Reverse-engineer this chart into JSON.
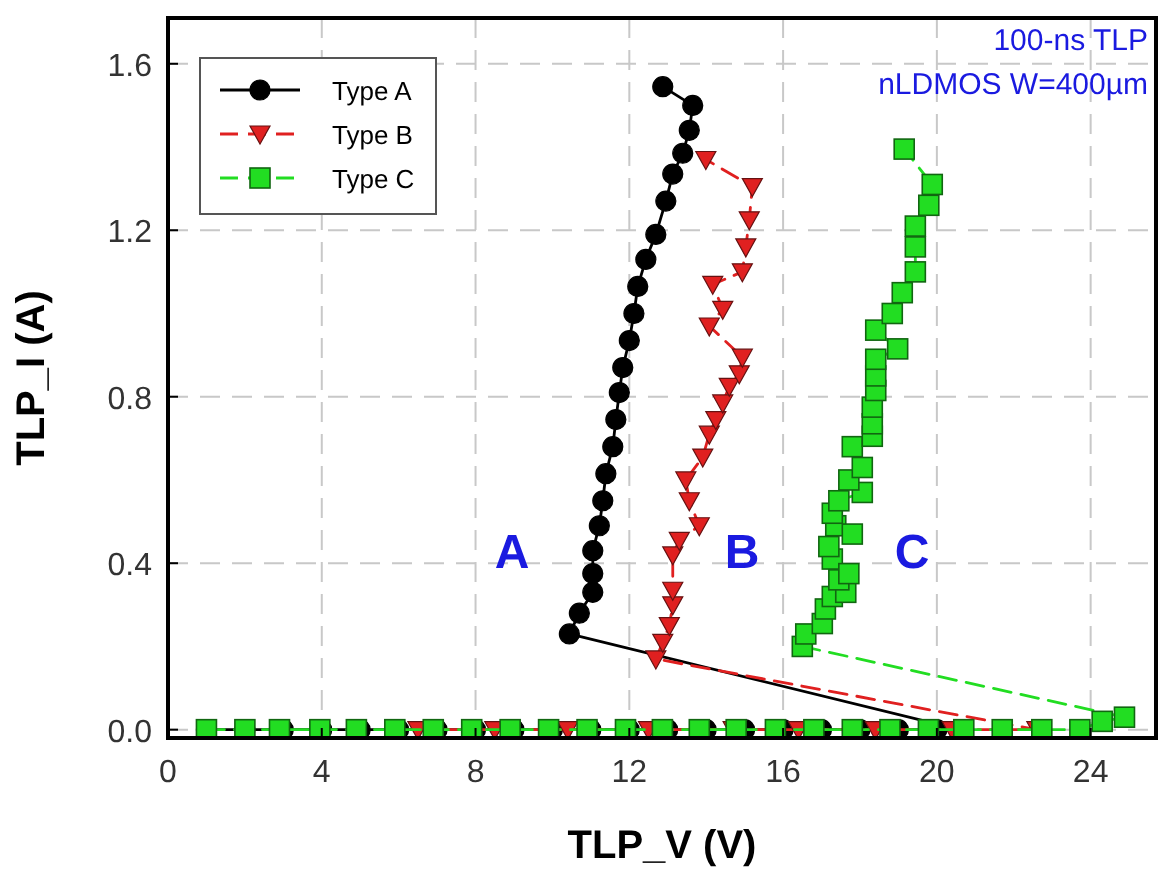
{
  "chart_data": {
    "type": "line",
    "xlabel": "TLP_V (V)",
    "ylabel": "TLP_I (A)",
    "xlim": [
      0,
      25.7
    ],
    "ylim": [
      -0.02,
      1.71
    ],
    "xticks": [
      0,
      4,
      8,
      12,
      16,
      20,
      24
    ],
    "yticks": [
      {
        "value": 0,
        "label": "0.0"
      },
      {
        "value": 0.4,
        "label": "0.4"
      },
      {
        "value": 0.8,
        "label": "0.8"
      },
      {
        "value": 1.2,
        "label": "1.2"
      },
      {
        "value": 1.6,
        "label": "1.6"
      }
    ],
    "grid": true,
    "legend": "top left",
    "annotations": [
      "A",
      "B",
      "C",
      "100-ns TLP",
      "nLDMOS W=400µm"
    ],
    "series": [
      {
        "name": "Type A",
        "color": "#000000",
        "marker": "circle",
        "line_style": "solid",
        "x": [
          1,
          2,
          3,
          4,
          5,
          6,
          7,
          8,
          9,
          10,
          11,
          12,
          13,
          14,
          15,
          16,
          17,
          18,
          19,
          20,
          20.6,
          10.44,
          10.7,
          11.05,
          11.05,
          11.05,
          11.22,
          11.31,
          11.39,
          11.57,
          11.65,
          11.74,
          11.83,
          12.0,
          12.12,
          12.22,
          12.43,
          12.69,
          12.95,
          13.13,
          13.39,
          13.56,
          13.65,
          12.87
        ],
        "values": [
          0,
          0,
          0,
          0,
          0,
          0,
          0,
          0,
          0,
          0,
          0,
          0,
          0,
          0,
          0,
          0,
          0,
          0,
          0,
          0,
          0,
          0.23,
          0.28,
          0.33,
          0.375,
          0.43,
          0.49,
          0.55,
          0.615,
          0.68,
          0.745,
          0.81,
          0.87,
          0.935,
          1.0,
          1.065,
          1.13,
          1.19,
          1.27,
          1.335,
          1.385,
          1.44,
          1.5,
          1.545
        ]
      },
      {
        "name": "Type B",
        "color": "#e02020",
        "marker": "triangle",
        "line_style": "dashed",
        "x": [
          6.5,
          8.5,
          10.4,
          12.5,
          14.7,
          16.4,
          18.4,
          20.4,
          22.6,
          12.69,
          12.87,
          13.04,
          13.13,
          13.13,
          13.13,
          13.3,
          13.82,
          13.56,
          13.47,
          13.91,
          14.08,
          14.25,
          14.43,
          14.6,
          14.86,
          14.94,
          14.08,
          14.43,
          14.17,
          14.94,
          15.03,
          15.12,
          15.2,
          13.99
        ],
        "values": [
          0,
          0,
          0,
          0,
          0,
          0,
          0,
          0,
          0,
          0.17,
          0.21,
          0.25,
          0.3,
          0.335,
          0.42,
          0.455,
          0.49,
          0.55,
          0.6,
          0.655,
          0.71,
          0.745,
          0.785,
          0.825,
          0.855,
          0.895,
          0.97,
          1.01,
          1.07,
          1.1,
          1.16,
          1.225,
          1.305,
          1.37
        ]
      },
      {
        "name": "Type C",
        "color": "#22dd22",
        "marker": "square",
        "line_style": "dashed",
        "x": [
          1,
          2,
          2.9,
          3.95,
          4.9,
          5.9,
          6.9,
          7.9,
          8.9,
          9.9,
          10.9,
          11.9,
          12.86,
          13.82,
          14.78,
          15.8,
          16.8,
          17.8,
          18.78,
          19.78,
          20.7,
          21.7,
          22.73,
          23.72,
          24.3,
          24.88,
          16.5,
          16.59,
          17.02,
          17.1,
          17.28,
          17.63,
          17.45,
          17.28,
          17.71,
          17.19,
          17.37,
          17.8,
          17.28,
          17.45,
          18.06,
          17.71,
          18.06,
          17.8,
          18.32,
          18.32,
          18.32,
          18.41,
          18.41,
          18.41,
          18.98,
          18.41,
          18.84,
          19.1,
          19.44,
          19.44,
          19.44,
          19.79,
          19.88,
          19.15
        ],
        "values": [
          0,
          0,
          0,
          0,
          0,
          0,
          0,
          0,
          0,
          0,
          0,
          0,
          0,
          0,
          0,
          0,
          0,
          0,
          0,
          0,
          0,
          0,
          0,
          0,
          0.02,
          0.03,
          0.2,
          0.23,
          0.255,
          0.29,
          0.32,
          0.33,
          0.36,
          0.41,
          0.375,
          0.44,
          0.49,
          0.47,
          0.52,
          0.55,
          0.57,
          0.6,
          0.63,
          0.68,
          0.705,
          0.735,
          0.775,
          0.815,
          0.85,
          0.89,
          0.915,
          0.96,
          1.0,
          1.05,
          1.1,
          1.16,
          1.21,
          1.26,
          1.31,
          1.395
        ]
      }
    ]
  }
}
